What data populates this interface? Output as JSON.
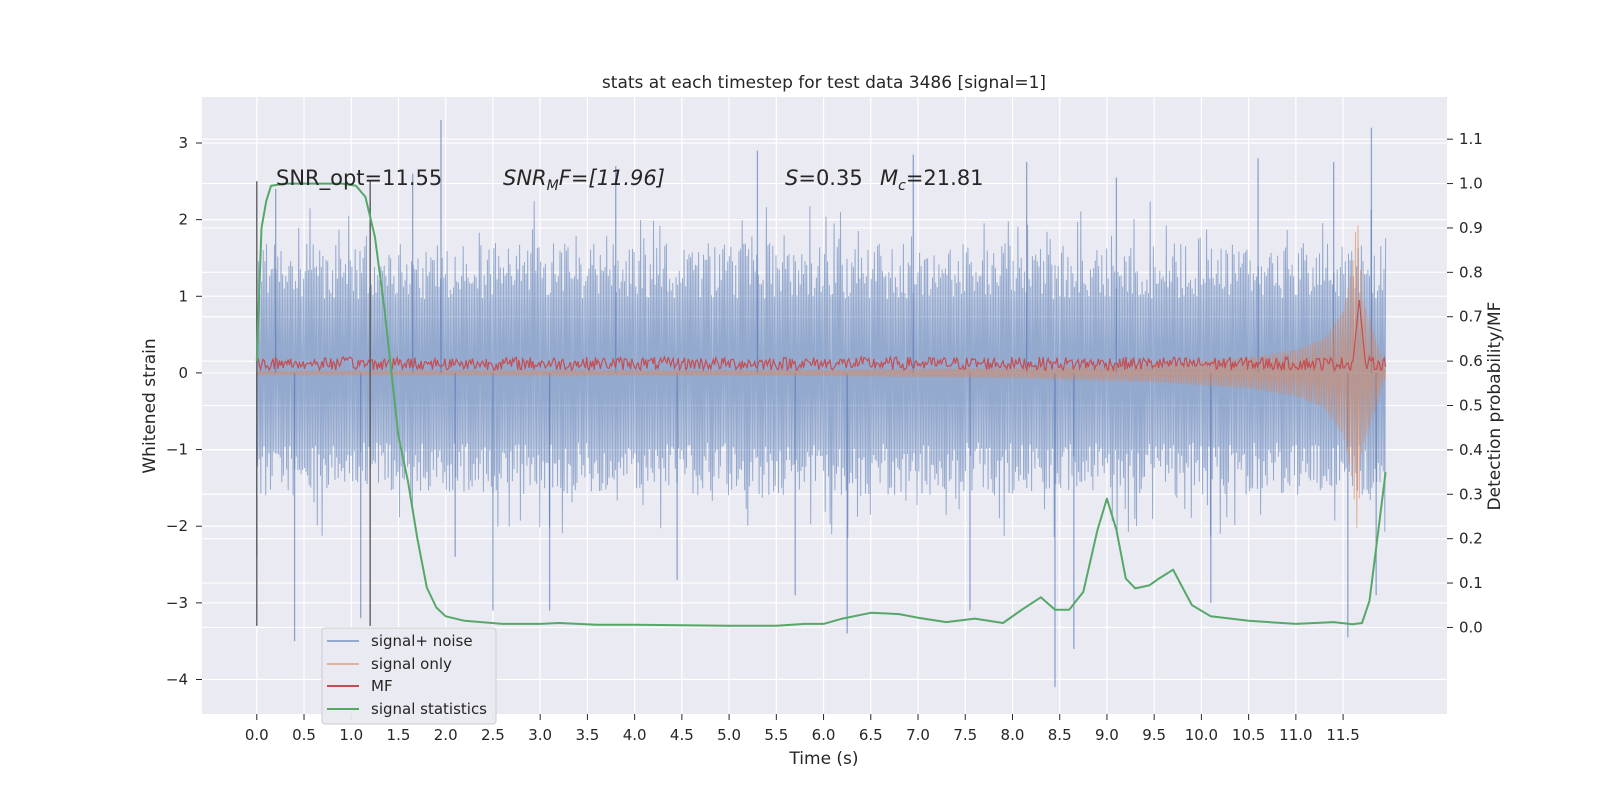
{
  "chart_data": {
    "type": "line",
    "title": "stats at each timestep for test data 3486 [signal=1]",
    "xlabel": "Time (s)",
    "ylabel_left": "Whitened strain",
    "ylabel_right": "Detection probability/MF",
    "xlim": [
      -0.58,
      12.6
    ],
    "ylim_left": [
      -4.45,
      3.6
    ],
    "ylim_right": [
      -0.195,
      1.195
    ],
    "xticks": [
      "0.0",
      "0.5",
      "1.0",
      "1.5",
      "2.0",
      "2.5",
      "3.0",
      "3.5",
      "4.0",
      "4.5",
      "5.0",
      "5.5",
      "6.0",
      "6.5",
      "7.0",
      "7.5",
      "8.0",
      "8.5",
      "9.0",
      "9.5",
      "10.0",
      "10.5",
      "11.0",
      "11.5"
    ],
    "yticks_left": [
      "3",
      "2",
      "1",
      "0",
      "−1",
      "−2",
      "−3",
      "−4"
    ],
    "yticks_right": [
      "1.1",
      "1.0",
      "0.9",
      "0.8",
      "0.7",
      "0.6",
      "0.5",
      "0.4",
      "0.3",
      "0.2",
      "0.1",
      "0.0"
    ],
    "grid": true,
    "legend_position": "lower-left",
    "annotations": {
      "snr_opt": "SNR_opt=11.55",
      "snr_mf_prefix": "SNR",
      "snr_mf_sub": "M",
      "snr_mf_suffix": "F=[11.96]",
      "s_prefix": "S",
      "s_value": "=0.35",
      "mc_prefix": "M",
      "mc_sub": "c",
      "mc_value": "=21.81"
    },
    "vertical_markers": [
      {
        "x": 0.0,
        "ymin": -3.3,
        "ymax": 2.5
      },
      {
        "x": 1.2,
        "ymin": -3.3,
        "ymax": 2.5
      }
    ],
    "series": [
      {
        "name": "signal+ noise",
        "color": "#4c72b0",
        "axis": "left",
        "x_start": 0.0,
        "x_end": 11.95,
        "band_upper": 1.75,
        "band_lower": -1.65,
        "spikes": [
          [
            0.0,
            -2.4
          ],
          [
            0.2,
            2.4
          ],
          [
            0.4,
            -3.5
          ],
          [
            1.1,
            -3.2
          ],
          [
            1.2,
            2.25
          ],
          [
            1.65,
            2.6
          ],
          [
            1.95,
            3.3
          ],
          [
            2.1,
            -2.4
          ],
          [
            2.5,
            -3.1
          ],
          [
            3.1,
            -3.1
          ],
          [
            3.8,
            2.7
          ],
          [
            4.45,
            -2.7
          ],
          [
            5.3,
            2.9
          ],
          [
            5.7,
            -2.9
          ],
          [
            6.25,
            -3.4
          ],
          [
            6.95,
            2.85
          ],
          [
            7.55,
            -3.1
          ],
          [
            8.15,
            2.75
          ],
          [
            8.45,
            -4.1
          ],
          [
            8.65,
            -3.6
          ],
          [
            9.1,
            2.55
          ],
          [
            10.1,
            -3.0
          ],
          [
            10.6,
            2.8
          ],
          [
            11.4,
            2.75
          ],
          [
            11.55,
            -3.45
          ],
          [
            11.8,
            3.2
          ],
          [
            11.85,
            -2.9
          ]
        ],
        "legend": "signal+ noise"
      },
      {
        "name": "signal only",
        "color": "#dd8452",
        "axis": "left",
        "x": [
          0.0,
          6.0,
          8.0,
          9.5,
          10.5,
          11.0,
          11.3,
          11.5,
          11.6,
          11.65,
          11.7,
          11.95
        ],
        "envelope": [
          0.02,
          0.04,
          0.07,
          0.12,
          0.2,
          0.3,
          0.45,
          0.8,
          1.4,
          2.1,
          1.0,
          0.05
        ],
        "legend": "signal only"
      },
      {
        "name": "MF",
        "color": "#c44e52",
        "axis": "right",
        "x_start": 0.0,
        "x_end": 11.95,
        "level": 0.59,
        "jitter": 0.015,
        "peak": [
          11.67,
          0.74
        ],
        "legend": "MF"
      },
      {
        "name": "signal statistics",
        "color": "#55a868",
        "axis": "right",
        "x": [
          0.0,
          0.05,
          0.1,
          0.15,
          0.3,
          0.6,
          0.9,
          1.05,
          1.15,
          1.25,
          1.35,
          1.5,
          1.6,
          1.7,
          1.8,
          1.9,
          2.0,
          2.2,
          2.6,
          3.0,
          3.2,
          3.6,
          4.0,
          4.5,
          5.0,
          5.5,
          5.8,
          6.0,
          6.2,
          6.5,
          6.8,
          7.0,
          7.3,
          7.6,
          7.9,
          8.1,
          8.3,
          8.45,
          8.6,
          8.75,
          8.9,
          9.0,
          9.1,
          9.2,
          9.3,
          9.45,
          9.55,
          9.7,
          9.8,
          9.9,
          10.1,
          10.5,
          11.0,
          11.4,
          11.6,
          11.7,
          11.78,
          11.85,
          11.95
        ],
        "y": [
          0.6,
          0.9,
          0.96,
          0.995,
          1.0,
          1.0,
          1.0,
          0.995,
          0.97,
          0.88,
          0.72,
          0.43,
          0.33,
          0.2,
          0.09,
          0.045,
          0.025,
          0.015,
          0.008,
          0.008,
          0.01,
          0.006,
          0.006,
          0.005,
          0.004,
          0.004,
          0.008,
          0.008,
          0.02,
          0.033,
          0.03,
          0.022,
          0.012,
          0.02,
          0.01,
          0.04,
          0.068,
          0.04,
          0.04,
          0.08,
          0.22,
          0.29,
          0.22,
          0.11,
          0.088,
          0.095,
          0.11,
          0.13,
          0.09,
          0.05,
          0.025,
          0.015,
          0.008,
          0.012,
          0.007,
          0.01,
          0.06,
          0.18,
          0.35
        ],
        "legend": "signal statistics"
      }
    ]
  }
}
